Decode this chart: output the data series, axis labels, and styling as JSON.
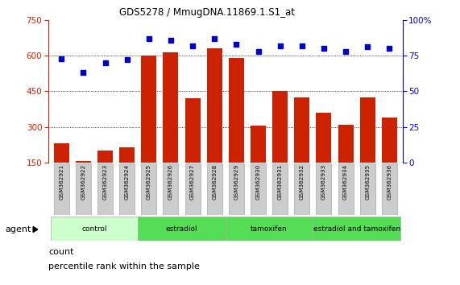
{
  "title": "GDS5278 / MmugDNA.11869.1.S1_at",
  "samples": [
    "GSM362921",
    "GSM362922",
    "GSM362923",
    "GSM362924",
    "GSM362925",
    "GSM362926",
    "GSM362927",
    "GSM362928",
    "GSM362929",
    "GSM362930",
    "GSM362931",
    "GSM362932",
    "GSM362933",
    "GSM362934",
    "GSM362935",
    "GSM362936"
  ],
  "counts": [
    230,
    155,
    200,
    215,
    600,
    615,
    420,
    630,
    590,
    305,
    450,
    425,
    360,
    310,
    425,
    340
  ],
  "percentile_ranks": [
    73,
    63,
    70,
    72,
    87,
    86,
    82,
    87,
    83,
    78,
    82,
    82,
    80,
    78,
    81,
    80
  ],
  "groups": [
    {
      "label": "control",
      "start": 0,
      "end": 3,
      "color": "#ccffcc"
    },
    {
      "label": "estradiol",
      "start": 4,
      "end": 7,
      "color": "#55dd55"
    },
    {
      "label": "tamoxifen",
      "start": 8,
      "end": 11,
      "color": "#55dd55"
    },
    {
      "label": "estradiol and tamoxifen",
      "start": 12,
      "end": 15,
      "color": "#55dd55"
    }
  ],
  "bar_color": "#cc2200",
  "dot_color": "#0000cc",
  "left_ylim": [
    150,
    750
  ],
  "left_yticks": [
    150,
    300,
    450,
    600,
    750
  ],
  "right_ylim": [
    0,
    100
  ],
  "right_yticks": [
    0,
    25,
    50,
    75,
    100
  ],
  "right_yticklabels": [
    "0",
    "25",
    "50",
    "75",
    "100%"
  ],
  "legend_count": "count",
  "legend_percentile": "percentile rank within the sample"
}
